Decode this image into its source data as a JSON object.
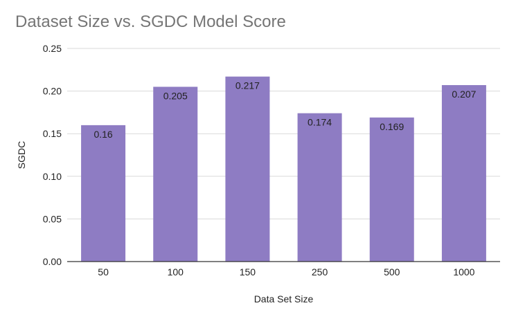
{
  "chart_data": {
    "type": "bar",
    "title": "Dataset Size vs. SGDC Model Score",
    "xlabel": "Data Set Size",
    "ylabel": "SGDC",
    "categories": [
      "50",
      "100",
      "150",
      "250",
      "500",
      "1000"
    ],
    "values": [
      0.16,
      0.205,
      0.217,
      0.174,
      0.169,
      0.207
    ],
    "data_labels": [
      "0.16",
      "0.205",
      "0.217",
      "0.174",
      "0.169",
      "0.207"
    ],
    "ylim": [
      0,
      0.25
    ],
    "yticks": [
      "0.00",
      "0.05",
      "0.10",
      "0.15",
      "0.20",
      "0.25"
    ],
    "grid": true,
    "legend": "none",
    "colors": {
      "bar": "#8e7cc3",
      "grid": "#d9d9d9",
      "axis": "#333333",
      "title": "#757575"
    }
  }
}
